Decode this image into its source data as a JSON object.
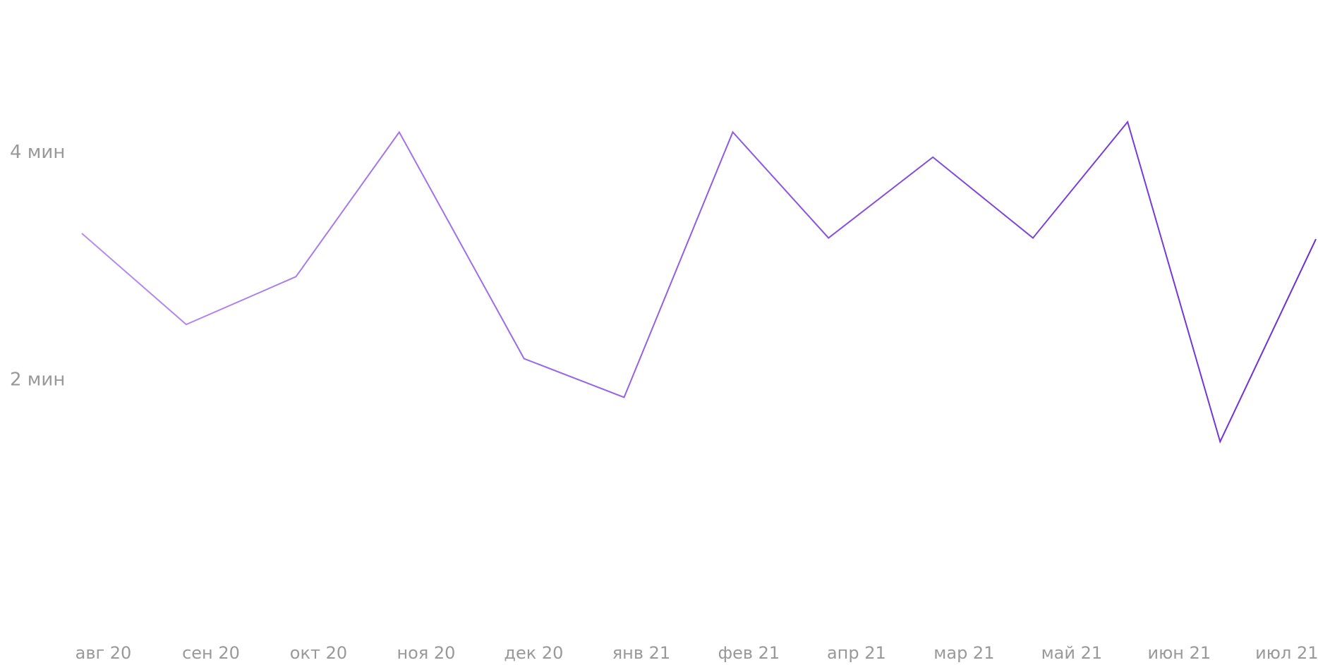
{
  "chart_data": {
    "type": "line",
    "x": [
      -0.2,
      0.77,
      1.79,
      2.75,
      3.91,
      4.84,
      5.85,
      6.74,
      7.71,
      8.64,
      9.52,
      10.38,
      11.27
    ],
    "series": [
      {
        "values": [
          3.29,
          2.49,
          2.91,
          4.18,
          2.19,
          1.85,
          4.18,
          3.25,
          3.96,
          3.25,
          4.27,
          1.46,
          3.24
        ],
        "color": [
          "#b48df2",
          "#6a2ed4"
        ]
      }
    ],
    "xlim": [
      -0.2,
      11.27
    ],
    "xticks": [
      {
        "value": 0,
        "label": "авг 20"
      },
      {
        "value": 1,
        "label": "сен 20"
      },
      {
        "value": 2,
        "label": "окт 20"
      },
      {
        "value": 3,
        "label": "ноя 20"
      },
      {
        "value": 4,
        "label": "дек 20"
      },
      {
        "value": 5,
        "label": "янв 21"
      },
      {
        "value": 6,
        "label": "фев 21"
      },
      {
        "value": 7,
        "label": "апр 21"
      },
      {
        "value": 8,
        "label": "мар 21"
      },
      {
        "value": 9,
        "label": "май 21"
      },
      {
        "value": 10,
        "label": "июн 21"
      },
      {
        "value": 11,
        "label": "июл 21"
      }
    ],
    "ylim": [
      0,
      5.3
    ],
    "yticks": [
      {
        "value": 2,
        "label": "2 мин"
      },
      {
        "value": 4,
        "label": "4 мин"
      }
    ],
    "grid": false
  }
}
